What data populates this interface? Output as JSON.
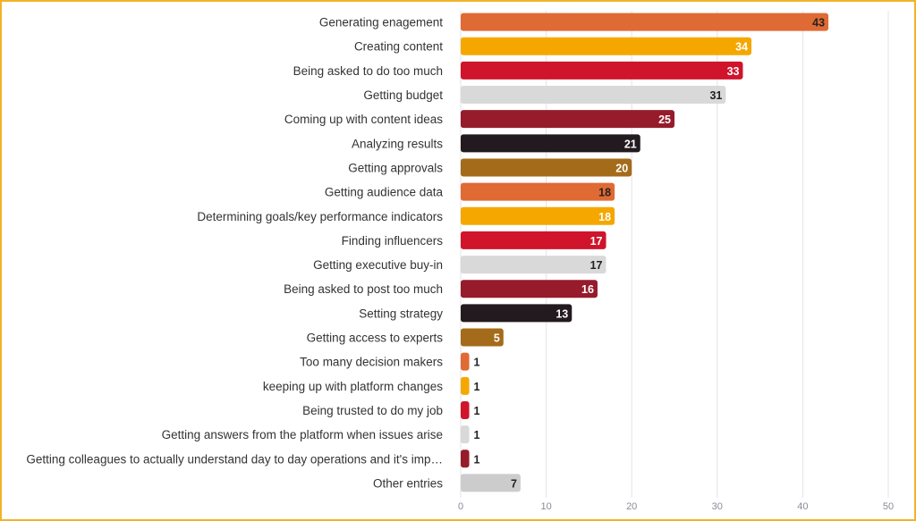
{
  "chart_data": {
    "type": "bar",
    "orientation": "horizontal",
    "title": "",
    "xlabel": "",
    "ylabel": "",
    "xlim": [
      0,
      50
    ],
    "ticks": [
      0,
      10,
      20,
      30,
      40,
      50
    ],
    "tick_labels": [
      "0",
      "10",
      "20",
      "30",
      "40",
      "50"
    ],
    "grid": true,
    "categories": [
      "Generating enagement",
      "Creating content",
      "Being asked to do too much",
      "Getting budget",
      "Coming up with content ideas",
      "Analyzing results",
      "Getting approvals",
      "Getting audience data",
      "Determining goals/key performance indicators",
      "Finding influencers",
      "Getting executive buy-in",
      "Being asked to post too much",
      "Setting strategy",
      "Getting access to experts",
      "Too many decision makers",
      "keeping up with platform changes",
      "Being trusted to do my job",
      "Getting answers from the platform when issues arise",
      "Getting colleagues to actually understand day to day operations and it's imp…",
      "Other entries"
    ],
    "values": [
      43,
      34,
      33,
      31,
      25,
      21,
      20,
      18,
      18,
      17,
      17,
      16,
      13,
      5,
      1,
      1,
      1,
      1,
      1,
      7
    ],
    "value_labels": [
      "43",
      "34",
      "33",
      "31",
      "25",
      "21",
      "20",
      "18",
      "18",
      "17",
      "17",
      "16",
      "13",
      "5",
      "1",
      "1",
      "1",
      "1",
      "1",
      "7"
    ],
    "colors": [
      "#e06a33",
      "#f5a700",
      "#cf142b",
      "#d9d9d9",
      "#961b2b",
      "#231a1f",
      "#a46b1a",
      "#e06a33",
      "#f5a700",
      "#cf142b",
      "#d9d9d9",
      "#961b2b",
      "#231a1f",
      "#a46b1a",
      "#e06a33",
      "#f5a700",
      "#cf142b",
      "#d9d9d9",
      "#961b2b",
      "#cccccc"
    ],
    "label_colors": [
      "#222222",
      "#ffffff",
      "#ffffff",
      "#222222",
      "#ffffff",
      "#ffffff",
      "#ffffff",
      "#222222",
      "#ffffff",
      "#ffffff",
      "#222222",
      "#ffffff",
      "#ffffff",
      "#ffffff",
      "#222222",
      "#222222",
      "#222222",
      "#222222",
      "#222222",
      "#222222"
    ]
  }
}
